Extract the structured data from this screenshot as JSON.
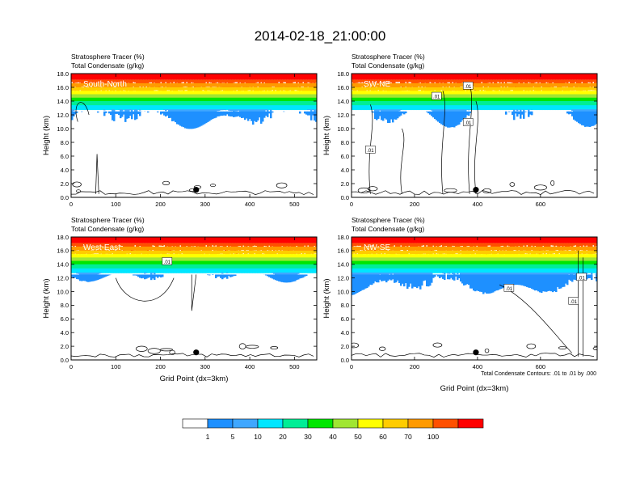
{
  "figure": {
    "title": "2014-02-18_21:00:00",
    "footnote": "Total Condensate Contours: .01 to .01 by .000",
    "colors": {
      "bins": [
        "#ffffff",
        "#1e90ff",
        "#3fa7ff",
        "#00e6ff",
        "#00ee96",
        "#00e600",
        "#a0e632",
        "#ffff00",
        "#ffcc00",
        "#ff9a00",
        "#ff5000",
        "#ff0000"
      ]
    },
    "colorbar": {
      "labels": [
        "1",
        "5",
        "10",
        "20",
        "30",
        "40",
        "50",
        "60",
        "70",
        "100"
      ]
    }
  },
  "chart_data": [
    {
      "type": "heatmap",
      "panel_label": "South-North",
      "title_line1": "Stratosphere Tracer   (%)",
      "title_line2": "Total Condensate   (g/kg)",
      "xlabel": "",
      "ylabel": "Height (km)",
      "xlim": [
        0,
        550
      ],
      "ylim": [
        0,
        18
      ],
      "xticks": [
        0,
        100,
        200,
        300,
        400,
        500
      ],
      "yticks": [
        "0.0",
        "2.0",
        "4.0",
        "6.0",
        "8.0",
        "10.0",
        "12.0",
        "14.0",
        "16.0",
        "18.0"
      ],
      "marker": {
        "x": 280,
        "y": 1.1
      },
      "contour_labels": []
    },
    {
      "type": "heatmap",
      "panel_label": "SW-NE",
      "title_line1": "Stratosphere Tracer   (%)",
      "title_line2": "Total Condensate   (g/kg)",
      "xlabel": "",
      "ylabel": "Height (km)",
      "xlim": [
        0,
        780
      ],
      "ylim": [
        0,
        18
      ],
      "xticks": [
        0,
        200,
        400,
        600
      ],
      "yticks": [
        "0.0",
        "2.0",
        "4.0",
        "6.0",
        "8.0",
        "10.0",
        "12.0",
        "14.0",
        "16.0",
        "18.0"
      ],
      "marker": {
        "x": 395,
        "y": 1.1
      },
      "contour_labels": [
        {
          "text": ".01",
          "x": 270,
          "y": 14.7
        },
        {
          "text": ".01",
          "x": 370,
          "y": 10.9
        },
        {
          "text": ".01",
          "x": 60,
          "y": 6.9
        },
        {
          "text": ".01",
          "x": 370,
          "y": 16.2
        }
      ]
    },
    {
      "type": "heatmap",
      "panel_label": "West-East",
      "title_line1": "Stratosphere Tracer   (%)",
      "title_line2": "Total Condensate   (g/kg)",
      "xlabel": "Grid Point (dx=3km)",
      "ylabel": "Height (km)",
      "xlim": [
        0,
        550
      ],
      "ylim": [
        0,
        18
      ],
      "xticks": [
        0,
        100,
        200,
        300,
        400,
        500
      ],
      "yticks": [
        "0.0",
        "2.0",
        "4.0",
        "6.0",
        "8.0",
        "10.0",
        "12.0",
        "14.0",
        "16.0",
        "18.0"
      ],
      "marker": {
        "x": 280,
        "y": 1.1
      },
      "contour_labels": [
        {
          "text": ".01",
          "x": 215,
          "y": 14.4
        }
      ]
    },
    {
      "type": "heatmap",
      "panel_label": "NW-SE",
      "title_line1": "Stratosphere Tracer   (%)",
      "title_line2": "Total Condensate   (g/kg)",
      "xlabel": "Grid Point (dx=3km)",
      "ylabel": "Height (km)",
      "xlim": [
        0,
        780
      ],
      "ylim": [
        0,
        18
      ],
      "xticks": [
        0,
        200,
        400,
        600
      ],
      "yticks": [
        "0.0",
        "2.0",
        "4.0",
        "6.0",
        "8.0",
        "10.0",
        "12.0",
        "14.0",
        "16.0",
        "18.0"
      ],
      "marker": {
        "x": 395,
        "y": 1.1
      },
      "contour_labels": [
        {
          "text": ".01",
          "x": 500,
          "y": 10.5
        },
        {
          "text": ".01",
          "x": 730,
          "y": 12.1
        },
        {
          "text": ".01",
          "x": 705,
          "y": 8.6
        }
      ]
    }
  ]
}
